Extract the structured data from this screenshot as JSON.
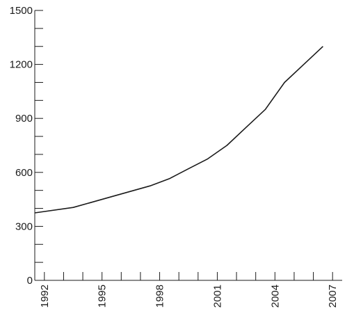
{
  "chart_data": {
    "type": "line",
    "title": "",
    "xlabel": "",
    "ylabel": "",
    "grid": false,
    "xlim": [
      1991.5,
      2007.5
    ],
    "ylim": [
      0,
      1500
    ],
    "y_ticks": [
      0,
      300,
      600,
      900,
      1200,
      1500
    ],
    "y_tick_labels": [
      "0",
      "300",
      "600",
      "900",
      "1200",
      "1500"
    ],
    "x_ticks": [
      1992,
      1995,
      1998,
      2001,
      2004,
      2007
    ],
    "x_tick_labels": [
      "1992",
      "1995",
      "1998",
      "2001",
      "2004",
      "2007"
    ],
    "series": [
      {
        "color": "#1a1a1a",
        "x": [
          1991.5,
          1993.5,
          1995.5,
          1997.5,
          1998.5,
          1999.5,
          2000.5,
          2001.5,
          2002.5,
          2003.5,
          2004.5,
          2005.5,
          2006.5
        ],
        "y": [
          375,
          405,
          465,
          525,
          565,
          620,
          675,
          750,
          850,
          950,
          1100,
          1200,
          1300
        ]
      }
    ]
  }
}
